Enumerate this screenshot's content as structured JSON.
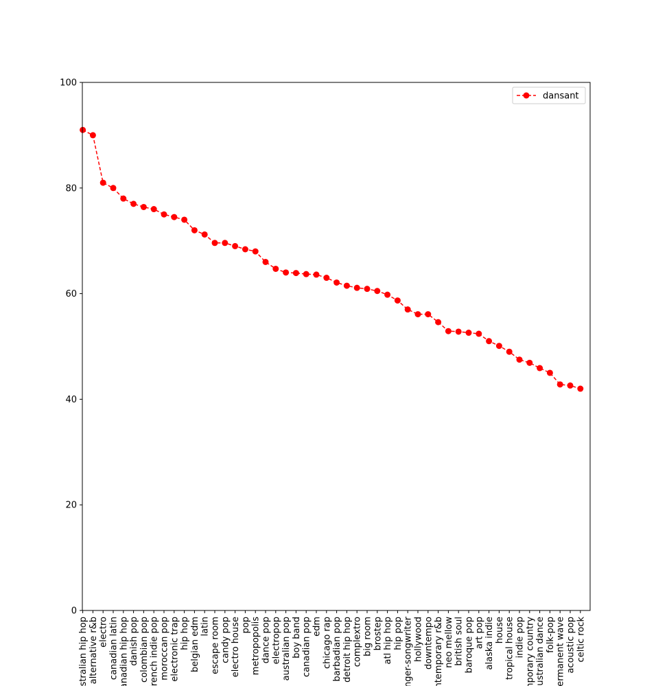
{
  "chart_data": {
    "type": "line",
    "categories": [
      "australian hip hop",
      "alternative r&b",
      "electro",
      "canadian latin",
      "canadian hip hop",
      "danish pop",
      "colombian pop",
      "french indie pop",
      "moroccan pop",
      "electronic trap",
      "hip hop",
      "belgian edm",
      "latin",
      "escape room",
      "candy pop",
      "electro house",
      "pop",
      "metropopolis",
      "dance pop",
      "electropop",
      "australian pop",
      "boy band",
      "canadian pop",
      "edm",
      "chicago rap",
      "barbadian pop",
      "detroit hip hop",
      "complextro",
      "big room",
      "brostep",
      "atl hip hop",
      "hip pop",
      "singer-songwriter",
      "hollywood",
      "downtempo",
      "contemporary r&b",
      "neo mellow",
      "british soul",
      "baroque pop",
      "art pop",
      "alaska indie",
      "house",
      "tropical house",
      "indie pop",
      "contemporary country",
      "australian dance",
      "folk-pop",
      "permanent wave",
      "acoustic pop",
      "celtic rock"
    ],
    "series": [
      {
        "name": "dansant",
        "values": [
          91.0,
          90.0,
          81.0,
          80.0,
          78.0,
          77.0,
          76.4,
          76.0,
          75.0,
          74.5,
          74.0,
          72.0,
          71.2,
          69.6,
          69.6,
          69.0,
          68.4,
          68.0,
          66.0,
          64.7,
          64.0,
          63.9,
          63.7,
          63.6,
          63.0,
          62.1,
          61.5,
          61.1,
          60.9,
          60.5,
          59.8,
          58.7,
          57.0,
          56.1,
          56.1,
          54.6,
          52.9,
          52.8,
          52.6,
          52.4,
          51.0,
          50.1,
          49.0,
          47.5,
          46.9,
          45.9,
          45.0,
          42.8,
          42.6,
          42.0
        ],
        "color": "#ff0000",
        "line_style": "dashed",
        "marker": "circle"
      }
    ],
    "ylim": [
      0,
      100
    ],
    "yticks": [
      0,
      20,
      40,
      60,
      80,
      100
    ],
    "xlabel": "",
    "ylabel": "",
    "title": "",
    "legend": "upper right",
    "grid": false,
    "xtick_rotation": 90
  }
}
